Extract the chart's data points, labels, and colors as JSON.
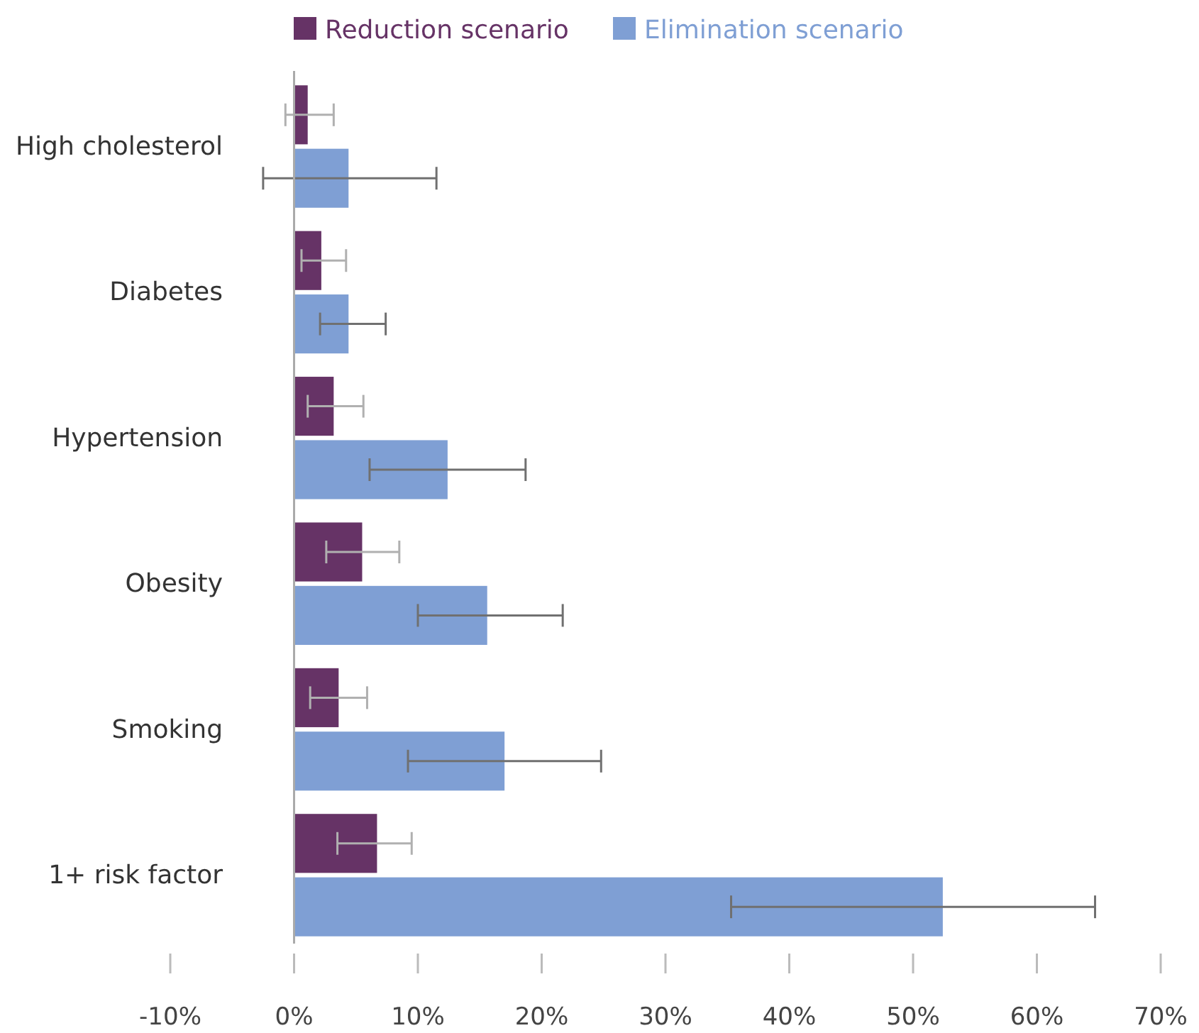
{
  "chart_data": {
    "type": "bar",
    "orientation": "horizontal",
    "categories": [
      "High cholesterol",
      "Diabetes",
      "Hypertension",
      "Obesity",
      "Smoking",
      "1+ risk factor"
    ],
    "series": [
      {
        "name": "Reduction scenario",
        "color": "#663366",
        "values": [
          1.1,
          2.2,
          3.2,
          5.5,
          3.6,
          6.7
        ],
        "errors": [
          [
            -0.7,
            3.2
          ],
          [
            0.6,
            4.2
          ],
          [
            1.1,
            5.6
          ],
          [
            2.6,
            8.5
          ],
          [
            1.3,
            5.9
          ],
          [
            3.5,
            9.5
          ]
        ]
      },
      {
        "name": "Elimination scenario",
        "color": "#7f9fd4",
        "values": [
          4.4,
          4.4,
          12.4,
          15.6,
          17.0,
          52.4
        ],
        "errors": [
          [
            -2.5,
            11.5
          ],
          [
            2.1,
            7.4
          ],
          [
            6.1,
            18.7
          ],
          [
            10.0,
            21.7
          ],
          [
            9.2,
            24.8
          ],
          [
            35.3,
            64.7
          ]
        ]
      }
    ],
    "xlim": [
      -10,
      70
    ],
    "xticks": [
      {
        "value": -10,
        "label": "-10%"
      },
      {
        "value": 0,
        "label": "0%"
      },
      {
        "value": 10,
        "label": "10%"
      },
      {
        "value": 20,
        "label": "20%"
      },
      {
        "value": 30,
        "label": "30%"
      },
      {
        "value": 40,
        "label": "40%"
      },
      {
        "value": 50,
        "label": "50%"
      },
      {
        "value": 60,
        "label": "60%"
      },
      {
        "value": 70,
        "label": "70%"
      }
    ],
    "legend": "top",
    "grid": "x"
  }
}
